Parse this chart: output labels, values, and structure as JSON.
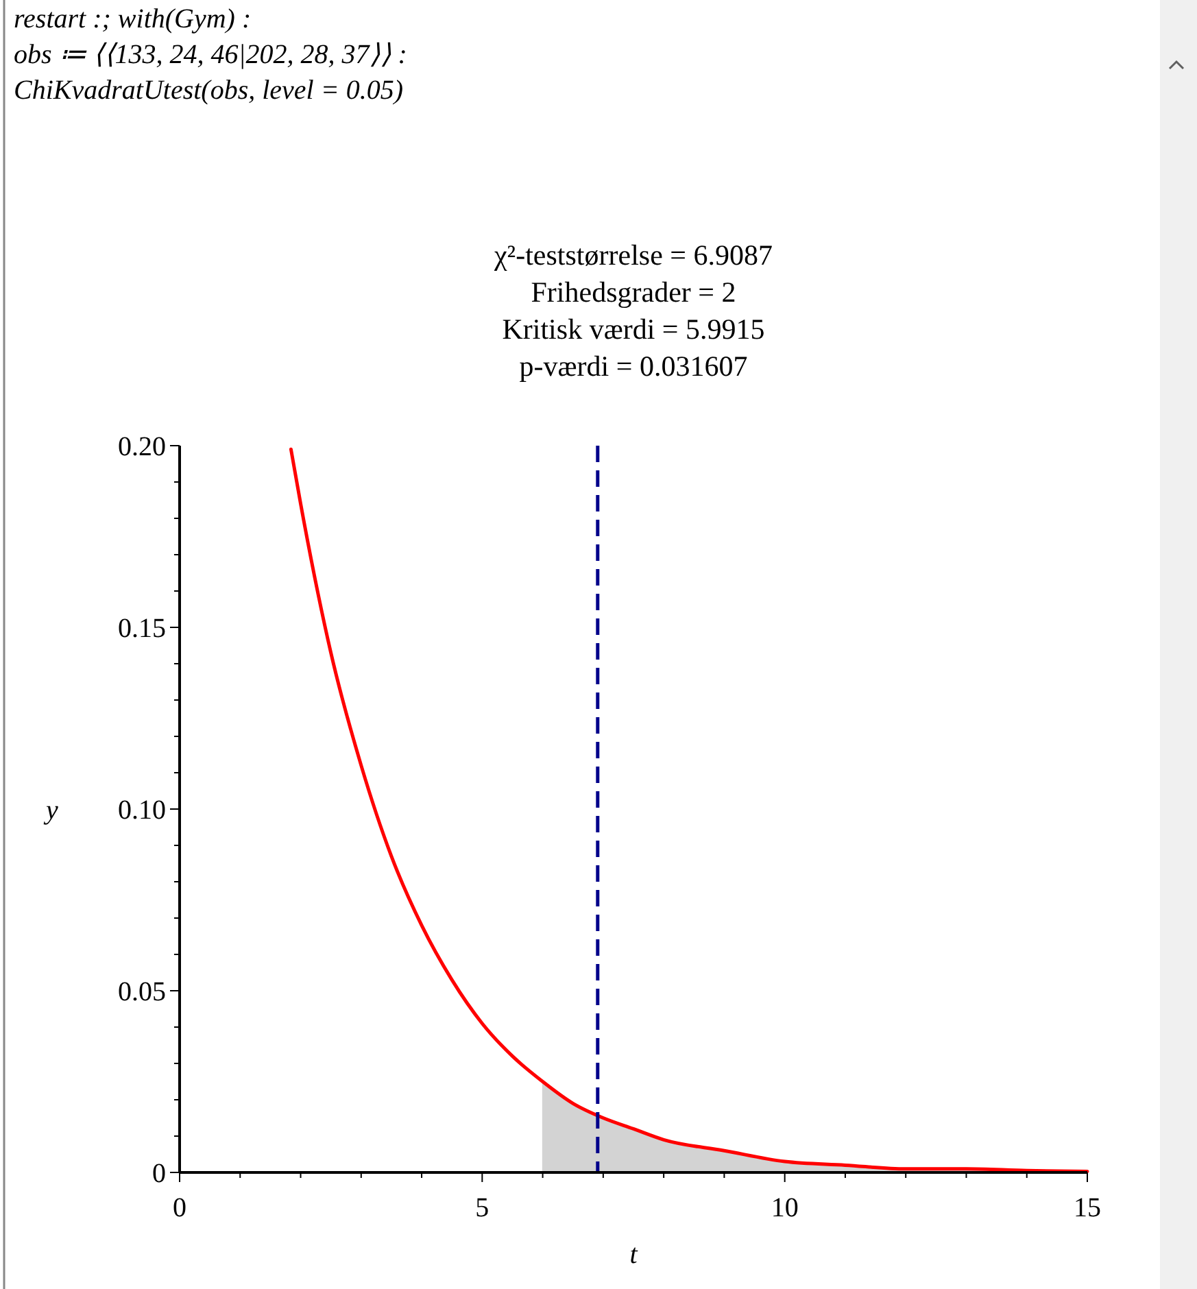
{
  "chart_data": {
    "type": "line",
    "title": "χ²-teststørrelse = 6.9087",
    "subtitle": "Frihedsgrader = 2\nKritisk værdi = 5.9915\np-værdi = 0.031607",
    "xlabel": "t",
    "ylabel": "y",
    "annotations": [
      "restart :; with(Gym) :",
      "obs ≔ ⟨⟨133, 24, 46|202, 28, 37⟩⟩ :",
      "ChiKvadratUtest(obs, level = 0.05)"
    ],
    "xlim": [
      0,
      15
    ],
    "ylim": [
      0,
      0.2
    ],
    "xticks": [
      0,
      {
        "value": 1,
        "label": null
      },
      {
        "value": 2,
        "label": null
      },
      {
        "value": 3,
        "label": null
      },
      {
        "value": 4,
        "label": null
      },
      5,
      {
        "value": 6,
        "label": null
      },
      {
        "value": 7,
        "label": null
      },
      {
        "value": 8,
        "label": null
      },
      {
        "value": 9,
        "label": null
      },
      10,
      {
        "value": 11,
        "label": null
      },
      {
        "value": 12,
        "label": null
      },
      {
        "value": 13,
        "label": null
      },
      {
        "value": 14,
        "label": null
      },
      15
    ],
    "yticks": [
      0,
      {
        "value": 0.01,
        "label": null
      },
      {
        "value": 0.02,
        "label": null
      },
      {
        "value": 0.03,
        "label": null
      },
      {
        "value": 0.04,
        "label": null
      },
      {
        "value": 0.05,
        "label": "0.05"
      },
      {
        "value": 0.06,
        "label": null
      },
      {
        "value": 0.07,
        "label": null
      },
      {
        "value": 0.08,
        "label": null
      },
      {
        "value": 0.09,
        "label": null
      },
      {
        "value": 0.1,
        "label": "0.10"
      },
      {
        "value": 0.11,
        "label": null
      },
      {
        "value": 0.12,
        "label": null
      },
      {
        "value": 0.13,
        "label": null
      },
      {
        "value": 0.14,
        "label": null
      },
      {
        "value": 0.15,
        "label": "0.15"
      },
      {
        "value": 0.16,
        "label": null
      },
      {
        "value": 0.17,
        "label": null
      },
      {
        "value": 0.18,
        "label": null
      },
      {
        "value": 0.19,
        "label": null
      },
      {
        "value": 0.2,
        "label": "0.20"
      }
    ],
    "series": [
      {
        "type": "area",
        "color": "#d3d3d3",
        "x": [
          5.9915,
          6.5,
          7,
          7.5,
          8,
          9,
          10,
          11,
          12,
          13,
          14,
          15
        ],
        "values": [
          0.025,
          0.019,
          0.015,
          0.012,
          0.009,
          0.006,
          0.003,
          0.002,
          0.001,
          0.001,
          0.0005,
          0.0003
        ]
      },
      {
        "color": "#ff0000",
        "x": [
          1.84,
          2,
          2.5,
          3,
          3.5,
          4,
          4.5,
          5,
          5.5,
          6,
          6.5,
          7,
          7.5,
          8,
          9,
          10,
          11,
          12,
          13,
          14,
          15
        ],
        "values": [
          0.199,
          0.184,
          0.143,
          0.112,
          0.087,
          0.068,
          0.053,
          0.041,
          0.032,
          0.025,
          0.019,
          0.015,
          0.012,
          0.009,
          0.006,
          0.003,
          0.002,
          0.001,
          0.001,
          0.0005,
          0.0003
        ]
      }
    ],
    "ref_lines": [
      {
        "axis": "x",
        "value": 6.9087,
        "color": "#00008b",
        "line_style": "dashed"
      }
    ],
    "grid": false,
    "line_style": "solid",
    "marker": "none"
  }
}
